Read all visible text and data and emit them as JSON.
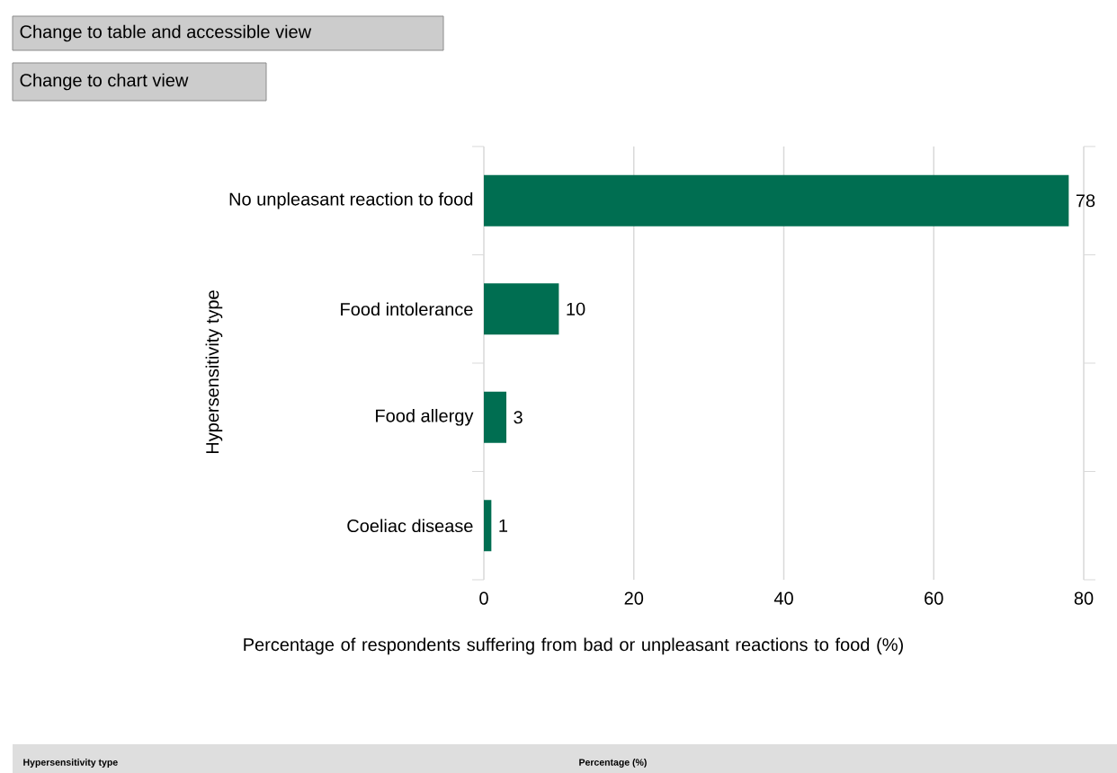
{
  "chart_data": {
    "type": "bar",
    "orientation": "horizontal",
    "categories": [
      "No unpleasant reaction to food",
      "Food intolerance",
      "Food allergy",
      "Coeliac disease"
    ],
    "values": [
      78,
      10,
      3,
      1
    ],
    "color": "#006e51",
    "data_labels": true,
    "xlim": [
      0,
      80
    ],
    "xticks": [
      0,
      20,
      40,
      60,
      80
    ],
    "grid": "x",
    "xlabel": "Percentage of respondents  suffering from bad or unpleasant reactions to food  (%)",
    "ylabel": "Hypersensitivity type",
    "annotations": [
      "Change to table and accessible view",
      "Change to chart view",
      "Hypersensitivity type",
      "Percentage (%)"
    ]
  }
}
